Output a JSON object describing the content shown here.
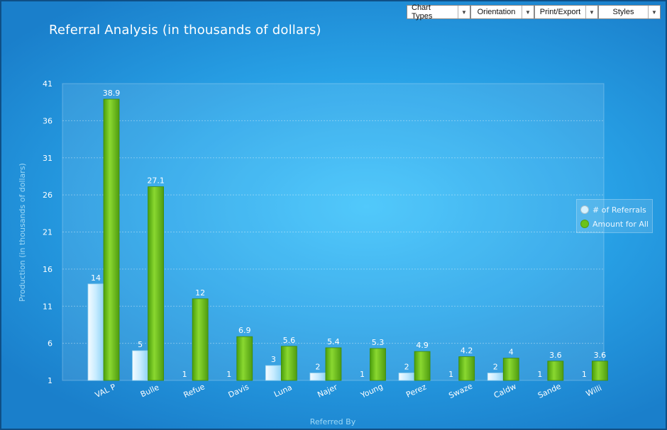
{
  "toolbar": {
    "buttons": [
      {
        "label": "Chart Types",
        "width": 90
      },
      {
        "label": "Orientation",
        "width": 90
      },
      {
        "label": "Print/Export",
        "width": 90
      },
      {
        "label": "Styles",
        "width": 88
      }
    ]
  },
  "colors": {
    "referrals": "#d6f2ff",
    "amount": "#6bc318",
    "axis_text": "#ffffff",
    "axis_title": "#9fd8f6"
  },
  "chart_data": {
    "type": "bar",
    "title": "Referral Analysis (in thousands of dollars)",
    "xlabel": "Referred By",
    "ylabel": "Production (in thousands of dollars)",
    "ylim": [
      1,
      41
    ],
    "yticks": [
      1,
      6,
      11,
      16,
      21,
      26,
      31,
      36,
      41
    ],
    "grid": true,
    "legend_position": "right",
    "categories": [
      "VAL P",
      "Bulle",
      "Refue",
      "Davis",
      "Luna",
      "Najer",
      "Young",
      "Perez",
      "Swaze",
      "Caldw",
      "Sande",
      "Willi"
    ],
    "series": [
      {
        "name": "# of Referrals",
        "values": [
          14,
          5,
          1,
          1,
          3,
          2,
          1,
          2,
          1,
          2,
          1,
          1
        ]
      },
      {
        "name": "Amount for All",
        "values": [
          38.9,
          27.1,
          12,
          6.9,
          5.6,
          5.4,
          5.3,
          4.9,
          4.2,
          4,
          3.6,
          3.6
        ]
      }
    ]
  }
}
